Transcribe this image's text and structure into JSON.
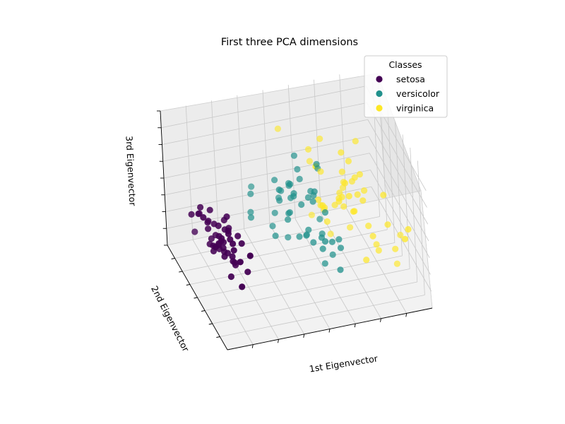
{
  "chart_data": {
    "type": "scatter",
    "title": "First three PCA dimensions",
    "xlabel": "1st Eigenvector",
    "ylabel": "2nd Eigenvector",
    "zlabel": "3rd Eigenvector",
    "grid": true,
    "legend": {
      "title": "Classes",
      "placement": "top-right"
    },
    "series": [
      {
        "name": "setosa",
        "color": "#440154",
        "points": [
          [
            -2.68,
            0.32,
            -0.03
          ],
          [
            -2.71,
            -0.18,
            -0.21
          ],
          [
            -2.89,
            -0.14,
            0.02
          ],
          [
            -2.75,
            -0.32,
            0.03
          ],
          [
            -2.73,
            0.33,
            0.09
          ],
          [
            -2.28,
            0.74,
            0.17
          ],
          [
            -2.82,
            -0.09,
            0.26
          ],
          [
            -2.63,
            0.16,
            -0.02
          ],
          [
            -2.89,
            -0.58,
            0.02
          ],
          [
            -2.67,
            -0.11,
            -0.2
          ],
          [
            -2.51,
            0.65,
            -0.08
          ],
          [
            -2.61,
            0.01,
            0.1
          ],
          [
            -2.79,
            -0.24,
            -0.21
          ],
          [
            -3.22,
            -0.51,
            0.06
          ],
          [
            -2.64,
            1.18,
            -0.14
          ],
          [
            -2.39,
            1.34,
            0.28
          ],
          [
            -2.62,
            0.81,
            0.14
          ],
          [
            -2.65,
            0.31,
            0.03
          ],
          [
            -2.2,
            0.87,
            -0.12
          ],
          [
            -2.59,
            0.51,
            0.21
          ],
          [
            -2.31,
            0.39,
            -0.23
          ],
          [
            -2.54,
            0.43,
            0.21
          ],
          [
            -3.22,
            0.13,
            0.29
          ],
          [
            -2.3,
            0.1,
            0.09
          ],
          [
            -2.36,
            -0.04,
            0.13
          ],
          [
            -2.51,
            -0.15,
            -0.25
          ],
          [
            -2.47,
            0.14,
            0.1
          ],
          [
            -2.56,
            0.37,
            -0.08
          ],
          [
            -2.64,
            0.31,
            -0.14
          ],
          [
            -2.63,
            -0.19,
            0.04
          ],
          [
            -2.59,
            -0.2,
            -0.1
          ],
          [
            -2.41,
            0.41,
            -0.17
          ],
          [
            -2.65,
            0.81,
            0.22
          ],
          [
            -2.6,
            1.1,
            0.12
          ],
          [
            -2.68,
            -0.12,
            -0.2
          ],
          [
            -2.87,
            0.07,
            -0.16
          ],
          [
            -2.63,
            0.6,
            -0.26
          ],
          [
            -2.8,
            0.27,
            0.01
          ],
          [
            -2.98,
            -0.49,
            0.06
          ],
          [
            -2.59,
            0.23,
            -0.12
          ],
          [
            -2.77,
            0.26,
            0.09
          ],
          [
            -2.85,
            -0.94,
            -0.35
          ],
          [
            -3.0,
            -0.34,
            0.2
          ],
          [
            -2.41,
            0.19,
            0.27
          ],
          [
            -2.21,
            0.44,
            0.13
          ],
          [
            -2.72,
            -0.24,
            -0.15
          ],
          [
            -2.54,
            0.51,
            0.14
          ],
          [
            -2.84,
            -0.22,
            0.06
          ],
          [
            -2.54,
            0.59,
            -0.03
          ],
          [
            -2.7,
            0.11,
            -0.08
          ]
        ]
      },
      {
        "name": "versicolor",
        "color": "#21918c",
        "points": [
          [
            1.28,
            0.69,
            -0.4
          ],
          [
            0.93,
            0.32,
            -0.28
          ],
          [
            1.46,
            0.5,
            -0.23
          ],
          [
            0.18,
            -0.83,
            -0.1
          ],
          [
            1.09,
            0.08,
            -0.21
          ],
          [
            0.64,
            -0.42,
            0.38
          ],
          [
            1.1,
            0.29,
            0.13
          ],
          [
            -0.75,
            -1.0,
            -0.28
          ],
          [
            1.04,
            0.23,
            -0.5
          ],
          [
            -0.01,
            -0.72,
            0.17
          ],
          [
            -0.51,
            -1.26,
            -0.1
          ],
          [
            0.51,
            -0.1,
            0.1
          ],
          [
            0.26,
            -0.55,
            -0.46
          ],
          [
            0.98,
            -0.12,
            0.17
          ],
          [
            -0.17,
            -0.25,
            0.26
          ],
          [
            0.93,
            0.47,
            -0.13
          ],
          [
            0.66,
            -0.35,
            0.29
          ],
          [
            0.23,
            -0.33,
            -0.07
          ],
          [
            0.94,
            -0.54,
            -0.47
          ],
          [
            0.04,
            -0.58,
            -0.02
          ],
          [
            1.12,
            -0.08,
            0.55
          ],
          [
            0.36,
            -0.07,
            -0.26
          ],
          [
            1.3,
            -0.33,
            -0.22
          ],
          [
            0.92,
            -0.18,
            0.2
          ],
          [
            0.71,
            0.15,
            -0.26
          ],
          [
            0.9,
            0.33,
            -0.14
          ],
          [
            1.33,
            0.24,
            -0.41
          ],
          [
            1.56,
            0.27,
            -0.23
          ],
          [
            0.81,
            -0.16,
            0.14
          ],
          [
            -0.31,
            -0.37,
            -0.33
          ],
          [
            -0.07,
            -0.7,
            -0.21
          ],
          [
            -0.19,
            -0.68,
            -0.35
          ],
          [
            0.13,
            -0.31,
            -0.14
          ],
          [
            1.38,
            -0.42,
            0.34
          ],
          [
            0.59,
            -0.48,
            0.52
          ],
          [
            0.81,
            0.2,
            0.36
          ],
          [
            1.22,
            0.41,
            -0.18
          ],
          [
            0.81,
            -0.37,
            -0.4
          ],
          [
            0.25,
            -0.27,
            0.29
          ],
          [
            0.17,
            -0.67,
            0.05
          ],
          [
            0.46,
            -0.67,
            0.12
          ],
          [
            0.89,
            -0.03,
            0.14
          ],
          [
            0.23,
            -0.4,
            -0.11
          ],
          [
            -0.71,
            -1.01,
            -0.07
          ],
          [
            0.36,
            -0.5,
            0.17
          ],
          [
            0.33,
            -0.21,
            0.2
          ],
          [
            0.37,
            -0.29,
            0.13
          ],
          [
            0.64,
            0.02,
            -0.16
          ],
          [
            -0.91,
            -0.75,
            -0.23
          ],
          [
            0.3,
            -0.35,
            0.09
          ]
        ]
      },
      {
        "name": "virginica",
        "color": "#fde725",
        "points": [
          [
            2.53,
            -0.01,
            0.76
          ],
          [
            1.41,
            -0.57,
            0.3
          ],
          [
            2.61,
            0.34,
            -0.11
          ],
          [
            1.97,
            -0.18,
            0.11
          ],
          [
            2.35,
            -0.04,
            0.28
          ],
          [
            3.4,
            0.55,
            -0.35
          ],
          [
            0.52,
            -1.19,
            0.55
          ],
          [
            2.93,
            0.35,
            -0.42
          ],
          [
            2.32,
            -0.24,
            -0.35
          ],
          [
            2.92,
            0.78,
            0.42
          ],
          [
            1.66,
            0.24,
            0.24
          ],
          [
            1.8,
            -0.22,
            -0.04
          ],
          [
            2.17,
            0.22,
            0.04
          ],
          [
            1.34,
            -0.78,
            0.28
          ],
          [
            1.59,
            -0.54,
            0.63
          ],
          [
            1.9,
            0.12,
            0.49
          ],
          [
            1.95,
            0.04,
            0.04
          ],
          [
            3.49,
            1.18,
            0.14
          ],
          [
            3.8,
            0.26,
            -0.33
          ],
          [
            1.3,
            -0.76,
            -0.35
          ],
          [
            2.43,
            0.38,
            0.22
          ],
          [
            1.2,
            -0.61,
            0.5
          ],
          [
            3.5,
            0.46,
            -0.57
          ],
          [
            1.39,
            -0.2,
            -0.06
          ],
          [
            2.28,
            0.33,
            0.28
          ],
          [
            2.61,
            0.56,
            -0.14
          ],
          [
            1.26,
            -0.18,
            0.01
          ],
          [
            1.29,
            -0.12,
            0.03
          ],
          [
            2.12,
            -0.21,
            0.15
          ],
          [
            2.39,
            0.46,
            -0.45
          ],
          [
            2.84,
            0.38,
            -0.33
          ],
          [
            3.23,
            1.37,
            0.12
          ],
          [
            2.16,
            -0.22,
            0.21
          ],
          [
            1.44,
            -0.14,
            -0.18
          ],
          [
            1.78,
            -0.5,
            -0.5
          ],
          [
            3.08,
            0.69,
            0.02
          ],
          [
            2.14,
            0.14,
            0.61
          ],
          [
            1.9,
            0.05,
            0.16
          ],
          [
            1.17,
            -0.16,
            0.09
          ],
          [
            2.11,
            0.37,
            0.11
          ],
          [
            2.31,
            0.18,
            0.42
          ],
          [
            1.92,
            0.41,
            0.32
          ],
          [
            1.41,
            -0.57,
            0.3
          ],
          [
            2.56,
            0.28,
            0.29
          ],
          [
            2.42,
            0.3,
            0.5
          ],
          [
            1.94,
            0.19,
            0.38
          ],
          [
            1.53,
            -0.38,
            -0.12
          ],
          [
            1.76,
            0.08,
            0.13
          ],
          [
            1.9,
            0.12,
            0.72
          ],
          [
            1.39,
            -0.28,
            0.36
          ]
        ]
      }
    ]
  }
}
